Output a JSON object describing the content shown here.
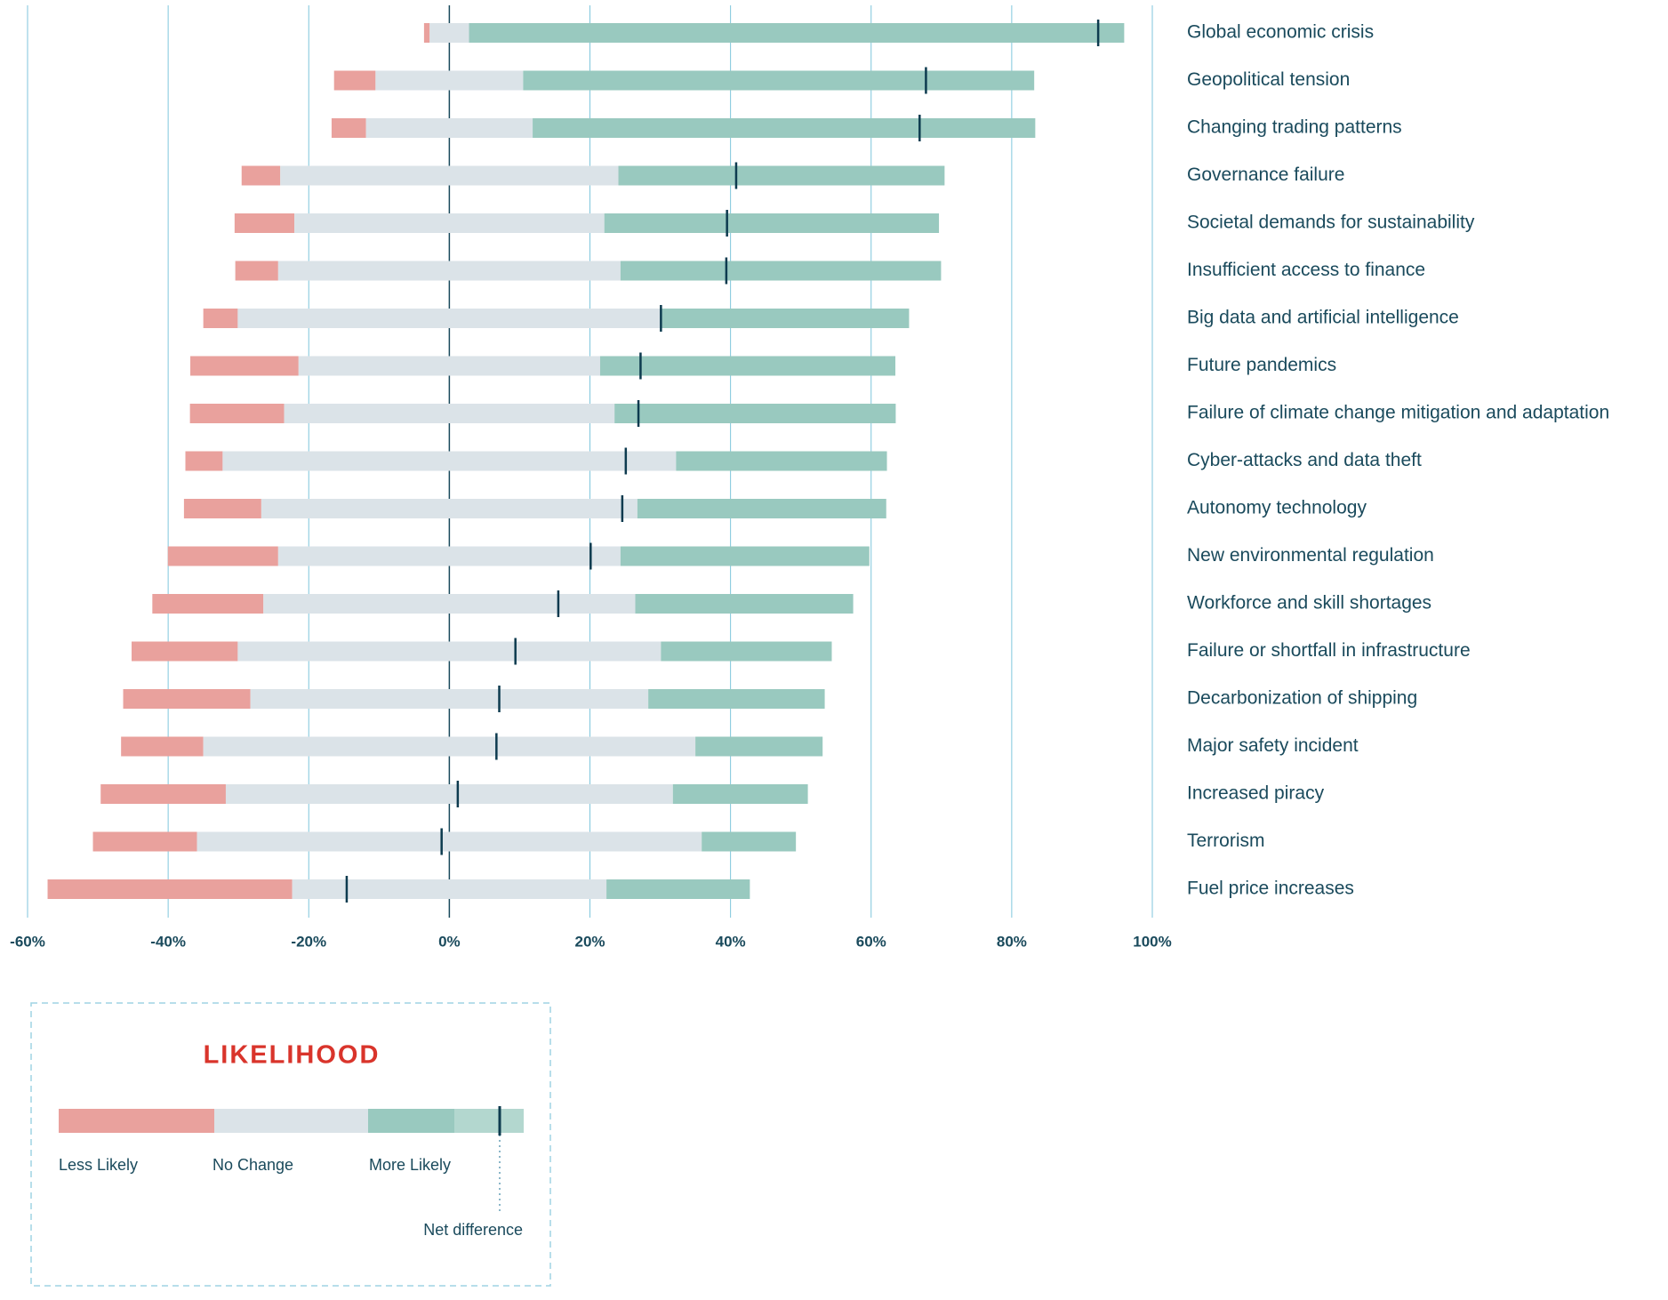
{
  "chart_data": {
    "type": "diverging_bar",
    "categories": [
      "Global economic crisis",
      "Geopolitical tension",
      "Changing trading patterns",
      "Governance failure",
      "Societal demands for sustainability",
      "Insufficient access to finance",
      "Big data and artificial intelligence",
      "Future pandemics",
      "Failure of climate change mitigation and adaptation",
      "Cyber-attacks and data theft",
      "Autonomy technology",
      "New environmental regulation",
      "Workforce and skill shortages",
      "Failure or shortfall in infrastructure",
      "Decarbonization of shipping",
      "Major safety incident",
      "Increased piracy",
      "Terrorism",
      "Fuel price increases"
    ],
    "series": [
      {
        "name": "Less Likely",
        "color": "#e9a19d",
        "values": [
          0.8,
          5.9,
          4.9,
          5.5,
          8.5,
          6.1,
          4.9,
          15.4,
          13.4,
          5.3,
          11.0,
          15.7,
          15.8,
          15.1,
          18.1,
          11.7,
          17.8,
          14.8,
          34.8
        ]
      },
      {
        "name": "No Change",
        "color": "#dbe3e8",
        "values": [
          5.6,
          21.0,
          23.7,
          48.1,
          44.1,
          48.7,
          60.2,
          42.9,
          47.0,
          64.5,
          53.5,
          48.7,
          52.9,
          60.2,
          56.6,
          70.0,
          63.6,
          71.8,
          44.7
        ]
      },
      {
        "name": "More Likely",
        "color": "#99c9bf",
        "values": [
          93.2,
          72.7,
          71.5,
          46.4,
          47.6,
          45.6,
          35.3,
          42.0,
          40.0,
          30.0,
          35.4,
          35.4,
          31.0,
          24.3,
          25.1,
          18.1,
          19.2,
          13.4,
          20.4
        ]
      },
      {
        "name": "Net difference",
        "color": "#0d3b4f",
        "values": [
          92.3,
          67.8,
          66.9,
          40.8,
          39.5,
          39.4,
          30.1,
          27.2,
          26.9,
          25.1,
          24.6,
          20.1,
          15.5,
          9.4,
          7.1,
          6.7,
          1.2,
          -1.1,
          -14.6
        ]
      }
    ],
    "xlim": [
      -60,
      100
    ],
    "xticks": [
      {
        "value": -60,
        "label": "-60%"
      },
      {
        "value": -40,
        "label": "-40%"
      },
      {
        "value": -20,
        "label": "-20%"
      },
      {
        "value": 0,
        "label": "0%"
      },
      {
        "value": 20,
        "label": "20%"
      },
      {
        "value": 40,
        "label": "40%"
      },
      {
        "value": 60,
        "label": "60%"
      },
      {
        "value": 80,
        "label": "80%"
      },
      {
        "value": 100,
        "label": "100%"
      }
    ],
    "grid": true,
    "legend_title": "LIKELIHOOD"
  }
}
